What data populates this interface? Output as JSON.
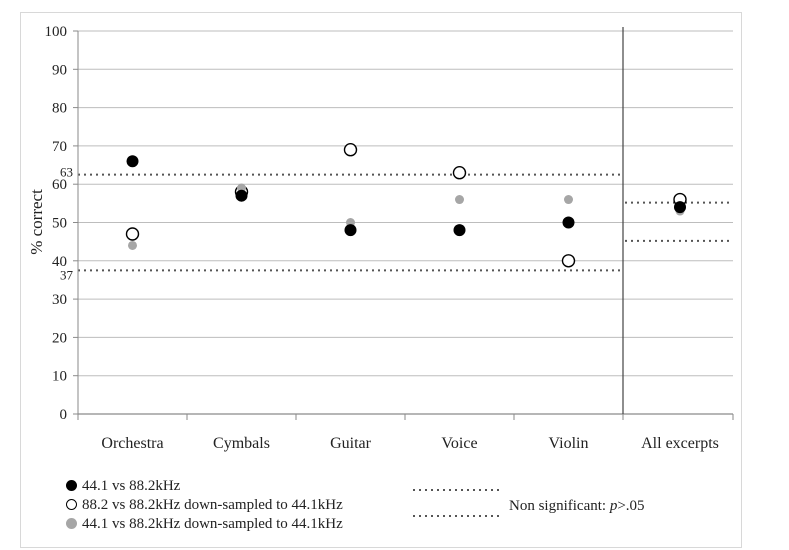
{
  "chart_data": {
    "type": "scatter",
    "categories": [
      "Orchestra",
      "Cymbals",
      "Guitar",
      "Voice",
      "Violin",
      "All excerpts"
    ],
    "ylabel": "% correct",
    "ylim": [
      0,
      100
    ],
    "yticks": [
      0,
      10,
      20,
      30,
      40,
      50,
      60,
      70,
      80,
      90,
      100
    ],
    "grid": true,
    "series": [
      {
        "name": "44.1 vs 88.2kHz",
        "marker": "filled-black",
        "color": "#000000",
        "values": [
          66,
          57,
          48,
          48,
          50,
          54
        ]
      },
      {
        "name": "88.2 vs 88.2kHz down-sampled to 44.1kHz",
        "marker": "open-circle",
        "color": "#000000",
        "values": [
          47,
          58,
          69,
          63,
          40,
          56
        ]
      },
      {
        "name": "44.1 vs 88.2kHz down-sampled to 44.1kHz",
        "marker": "filled-gray",
        "color": "#a6a6a6",
        "values": [
          44,
          59,
          50,
          56,
          56,
          53
        ]
      }
    ],
    "thresholds": {
      "individual": {
        "upper": 62.5,
        "lower": 37.5,
        "upper_label": "63",
        "lower_label": "37"
      },
      "all_excerpts": {
        "upper": 55.2,
        "lower": 45.2
      }
    },
    "legend": {
      "position": "bottom",
      "significance_label": "Non significant: ",
      "significance_italic": "p",
      "significance_value": ">.05"
    }
  }
}
